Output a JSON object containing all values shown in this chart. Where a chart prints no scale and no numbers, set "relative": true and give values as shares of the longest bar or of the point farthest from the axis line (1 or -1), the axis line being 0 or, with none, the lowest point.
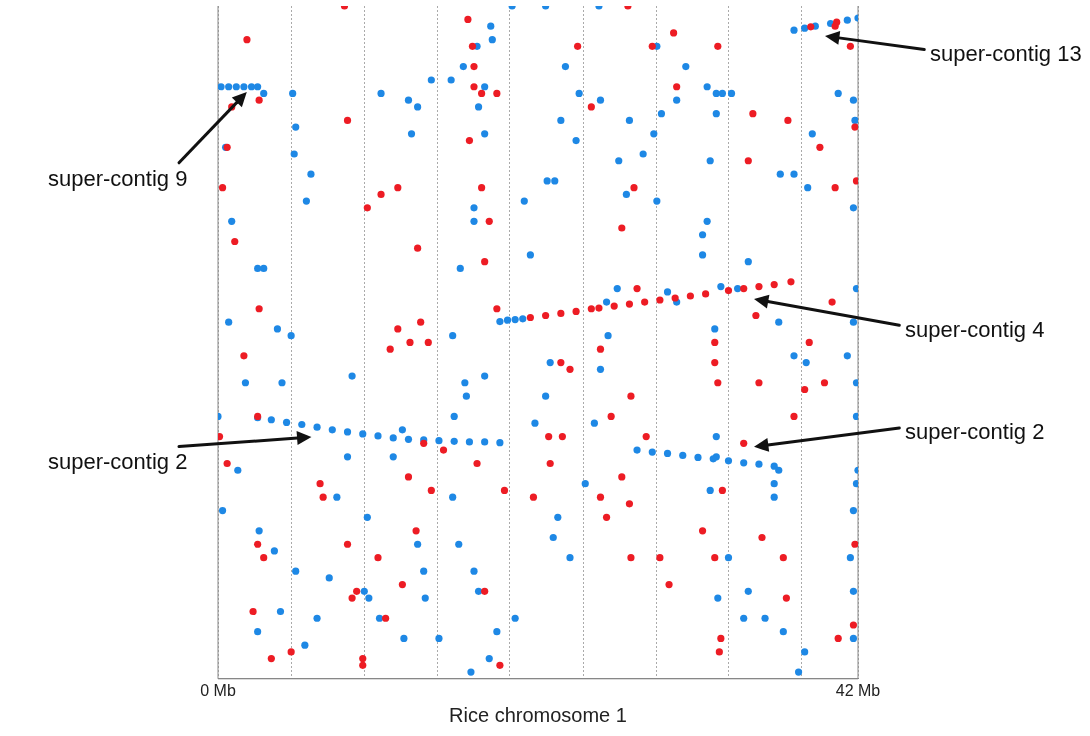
{
  "chart_data": {
    "type": "scatter",
    "xlabel": "Rice chromosome 1",
    "relative": true,
    "marker": "circle",
    "grid": "x",
    "legend": false,
    "xlim": [
      0,
      42
    ],
    "xticks": [
      {
        "value": 0,
        "label": "0 Mb"
      },
      {
        "value": 4.8,
        "label": null
      },
      {
        "value": 9.6,
        "label": null
      },
      {
        "value": 14.4,
        "label": null
      },
      {
        "value": 19.1,
        "label": null
      },
      {
        "value": 24,
        "label": null
      },
      {
        "value": 28.8,
        "label": null
      },
      {
        "value": 33.5,
        "label": null
      },
      {
        "value": 38.3,
        "label": null
      },
      {
        "value": 42,
        "label": "42 Mb"
      }
    ],
    "annotations": [
      "super-contig 13",
      "super-contig 9",
      "super-contig 4",
      "super-contig 2",
      "super-contig 2"
    ],
    "series": [
      {
        "color": "#ed1c24",
        "x": [
          0.6,
          0.9,
          1.9,
          2.7,
          0.3,
          1.1,
          2.7,
          1.7,
          2.6,
          0.1,
          0.6,
          2.6,
          3.0,
          2.3,
          3.5,
          4.8,
          6.7,
          6.9,
          8.5,
          8.8,
          9.1,
          9.5,
          9.5,
          10.5,
          11.0,
          9.8,
          8.5,
          8.3,
          10.7,
          11.8,
          13.1,
          13.3,
          13.8,
          12.6,
          11.8,
          11.3,
          12.5,
          13.5,
          14.0,
          12.1,
          13.0,
          14.8,
          16.4,
          16.7,
          16.8,
          16.8,
          17.3,
          18.3,
          16.5,
          17.3,
          17.8,
          17.5,
          18.3,
          17.0,
          17.5,
          18.5,
          18.8,
          20.7,
          21.8,
          21.7,
          22.6,
          23.6,
          24.5,
          26.9,
          28.5,
          29.9,
          30.1,
          32.8,
          26.5,
          27.5,
          27.3,
          22.5,
          23.1,
          25.1,
          25.8,
          27.1,
          28.1,
          25.1,
          25.5,
          26.5,
          27.0,
          27.1,
          29.0,
          29.6,
          31.8,
          32.6,
          32.6,
          32.8,
          33.1,
          32.6,
          33.0,
          32.9,
          34.5,
          34.8,
          35.1,
          35.5,
          35.3,
          35.7,
          37.4,
          37.1,
          37.3,
          37.8,
          38.5,
          38.8,
          39.5,
          40.5,
          41.8,
          41.9,
          40.3,
          39.8,
          41.8,
          41.7,
          40.7,
          41.5,
          40.5,
          20.5,
          21.5,
          22.5,
          23.5,
          24.5,
          25,
          26,
          27,
          28,
          29,
          30,
          31,
          32,
          33.5,
          34.5,
          35.5,
          36.5,
          37.6,
          38.9,
          40.6
        ],
        "values": [
          0.79,
          0.85,
          0.95,
          0.86,
          0.73,
          0.65,
          0.55,
          0.48,
          0.39,
          0.36,
          0.32,
          0.2,
          0.18,
          0.1,
          0.03,
          0.04,
          0.29,
          0.27,
          0.2,
          0.12,
          0.13,
          0.03,
          0.02,
          0.18,
          0.09,
          0.7,
          0.83,
          1,
          0.72,
          0.73,
          0.64,
          0.53,
          0.5,
          0.5,
          0.52,
          0.49,
          0.3,
          0.35,
          0.28,
          0.14,
          0.22,
          0.34,
          0.98,
          0.94,
          0.91,
          0.88,
          0.87,
          0.87,
          0.8,
          0.73,
          0.68,
          0.62,
          0.55,
          0.32,
          0.13,
          0.02,
          0.28,
          0.27,
          0.32,
          0.36,
          0.36,
          0.94,
          0.85,
          1,
          0.94,
          0.96,
          0.88,
          0.94,
          0.67,
          0.58,
          0.73,
          0.47,
          0.46,
          0.49,
          0.39,
          0.42,
          0.36,
          0.27,
          0.24,
          0.3,
          0.26,
          0.18,
          0.18,
          0.14,
          0.22,
          0.5,
          0.47,
          0.44,
          0.28,
          0.18,
          0.06,
          0.04,
          0.35,
          0.77,
          0.84,
          0.44,
          0.54,
          0.21,
          0.83,
          0.18,
          0.12,
          0.39,
          0.43,
          0.5,
          0.79,
          0.73,
          0.82,
          0.74,
          0.56,
          0.44,
          0.2,
          0.08,
          0.06,
          0.94,
          0.97,
          0.537,
          0.54,
          0.543,
          0.546,
          0.55,
          0.551,
          0.554,
          0.557,
          0.56,
          0.563,
          0.566,
          0.569,
          0.572,
          0.577,
          0.58,
          0.583,
          0.586,
          0.59,
          0.969,
          0.976
        ]
      },
      {
        "color": "#1e88e5",
        "x": [
          0.5,
          0.9,
          2.6,
          3.0,
          0.7,
          3.9,
          4.8,
          5.0,
          5.8,
          4.9,
          5.1,
          6.1,
          4.2,
          1.8,
          0,
          1.3,
          0.3,
          2.7,
          3.7,
          5.1,
          2.6,
          4.1,
          5.7,
          6.5,
          9.6,
          9.9,
          12.2,
          13.6,
          14.5,
          13.5,
          13.1,
          9.8,
          8.5,
          7.8,
          7.3,
          10.6,
          8.8,
          11.5,
          12.1,
          14.0,
          12.5,
          10.7,
          12.7,
          13.1,
          15.3,
          16.1,
          17.0,
          17.9,
          18.0,
          19.3,
          17.5,
          17.1,
          17.5,
          16.8,
          16.8,
          15.9,
          15.4,
          16.2,
          17.5,
          16.3,
          15.5,
          15.4,
          15.8,
          16.8,
          17.1,
          18.3,
          16.6,
          17.8,
          19.5,
          20.8,
          21.5,
          21.8,
          22.3,
          22.0,
          23.1,
          24.1,
          24.7,
          25.1,
          25.6,
          26.2,
          27.0,
          26.8,
          27.9,
          29.1,
          30.1,
          30.7,
          32.1,
          32.7,
          33.1,
          33.7,
          32.7,
          32.3,
          31.8,
          32.1,
          31.8,
          32.6,
          32.7,
          32.7,
          32.3,
          33.5,
          32.8,
          34.5,
          34.8,
          35.9,
          37.1,
          38.5,
          38.1,
          36.5,
          36.5,
          36.8,
          36.9,
          37.8,
          38.7,
          39.0,
          41.7,
          41.8,
          41.7,
          41.9,
          41.7,
          41.3,
          41.9,
          41.9,
          42.0,
          41.9,
          41.7,
          41.5,
          41.7,
          41.7,
          40.7,
          38.6,
          37.8,
          36.8,
          34.8,
          34.1,
          30.1,
          28.8,
          28.6,
          25.1,
          23.7,
          22.8,
          21.5,
          25.0,
          28.8,
          26.3,
          23.5,
          22.5,
          20.5,
          20.1,
          21.6,
          22.1,
          0.2,
          0.7,
          1.2,
          1.7,
          2.2,
          2.6,
          3.0,
          2.6,
          3.5,
          4.5,
          5.5,
          6.5,
          7.5,
          8.5,
          9.5,
          10.5,
          11.5,
          12.5,
          13.5,
          14.5,
          15.5,
          16.5,
          17.5,
          18.5,
          27.5,
          28.5,
          29.5,
          30.5,
          31.5,
          32.5,
          33.5,
          34.5,
          35.5,
          36.5,
          18.5,
          19.0,
          19.5,
          20.0,
          25.5,
          29.5,
          33,
          37.8,
          38.5,
          39.2,
          40.2,
          41.3,
          42
        ],
        "values": [
          0.79,
          0.68,
          0.61,
          0.61,
          0.53,
          0.52,
          0.51,
          0.78,
          0.71,
          0.87,
          0.82,
          0.75,
          0.44,
          0.44,
          0.39,
          0.31,
          0.25,
          0.22,
          0.19,
          0.16,
          0.07,
          0.1,
          0.05,
          0.09,
          0.13,
          0.12,
          0.06,
          0.12,
          0.06,
          0.16,
          0.2,
          0.24,
          0.33,
          0.27,
          0.15,
          0.09,
          0.45,
          0.33,
          0.37,
          0.89,
          0.86,
          0.87,
          0.81,
          0.85,
          0.89,
          0.91,
          0.94,
          0.97,
          0.95,
          1,
          0.88,
          0.85,
          0.81,
          0.7,
          0.68,
          0.61,
          0.51,
          0.44,
          0.45,
          0.42,
          0.39,
          0.27,
          0.2,
          0.16,
          0.13,
          0.07,
          0.01,
          0.03,
          0.09,
          0.38,
          0.42,
          0.47,
          0.24,
          0.21,
          0.18,
          0.29,
          0.38,
          0.46,
          0.51,
          0.58,
          0.83,
          0.72,
          0.78,
          0.84,
          0.86,
          0.91,
          0.88,
          0.87,
          0.87,
          0.87,
          0.84,
          0.77,
          0.66,
          0.68,
          0.63,
          0.52,
          0.36,
          0.33,
          0.28,
          0.18,
          0.12,
          0.09,
          0.13,
          0.09,
          0.07,
          0.04,
          0.01,
          0.27,
          0.29,
          0.31,
          0.75,
          0.75,
          0.73,
          0.81,
          0.86,
          0.83,
          0.7,
          0.58,
          0.53,
          0.48,
          0.44,
          0.39,
          0.31,
          0.29,
          0.25,
          0.18,
          0.13,
          0.06,
          0.87,
          0.47,
          0.48,
          0.53,
          0.62,
          0.58,
          0.56,
          0.71,
          0.81,
          0.86,
          0.87,
          0.91,
          1,
          1,
          0.94,
          0.77,
          0.8,
          0.83,
          0.63,
          0.71,
          0.74,
          0.74,
          0.88,
          0.88,
          0.88,
          0.88,
          0.88,
          0.88,
          0.87,
          0.388,
          0.385,
          0.381,
          0.378,
          0.374,
          0.37,
          0.367,
          0.364,
          0.361,
          0.358,
          0.356,
          0.355,
          0.354,
          0.353,
          0.352,
          0.352,
          0.351,
          0.34,
          0.337,
          0.335,
          0.332,
          0.329,
          0.327,
          0.324,
          0.321,
          0.319,
          0.316,
          0.531,
          0.533,
          0.534,
          0.535,
          0.56,
          0.575,
          0.583,
          0.964,
          0.967,
          0.97,
          0.974,
          0.979,
          0.982
        ]
      }
    ]
  }
}
